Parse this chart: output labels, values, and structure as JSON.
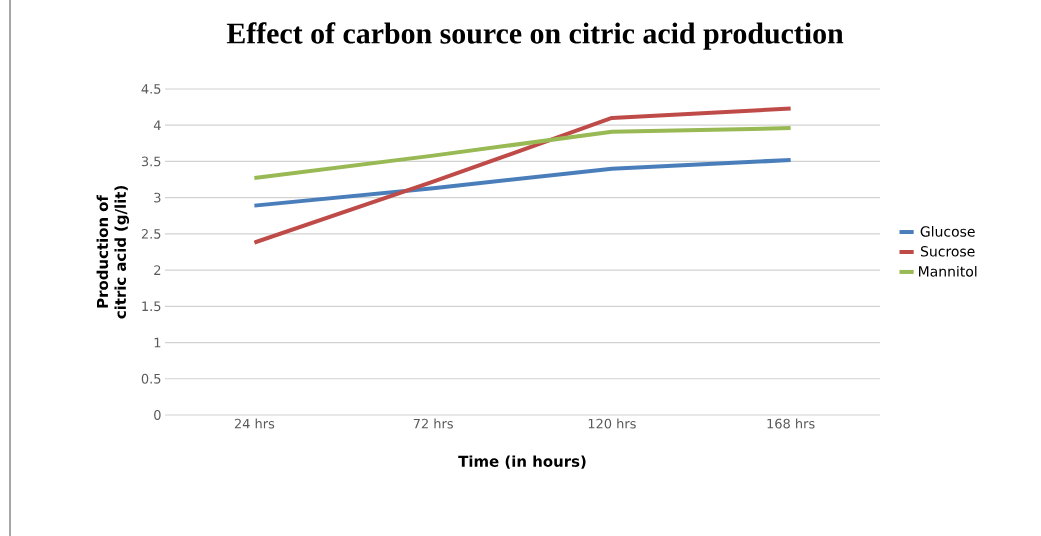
{
  "chart_data": {
    "type": "line",
    "title": "Effect of carbon source on citric acid production",
    "xlabel": "Time (in hours)",
    "ylabel": "Production of citric acid (g/lit)",
    "categories": [
      "24 hrs",
      "72 hrs",
      "120 hrs",
      "168 hrs"
    ],
    "series": [
      {
        "name": "Glucose",
        "color": "#4a7ebb",
        "values": [
          2.89,
          3.13,
          3.4,
          3.52
        ]
      },
      {
        "name": "Sucrose",
        "color": "#be4b48",
        "values": [
          2.38,
          3.22,
          4.1,
          4.23
        ]
      },
      {
        "name": "Mannitol",
        "color": "#98b954",
        "values": [
          3.27,
          3.58,
          3.91,
          3.96
        ]
      }
    ],
    "ylim": [
      0,
      4.5
    ],
    "yticks": [
      0,
      0.5,
      1,
      1.5,
      2,
      2.5,
      3,
      3.5,
      4,
      4.5
    ],
    "grid": "y",
    "legend": "right",
    "marker": "none",
    "line_style": "solid"
  }
}
